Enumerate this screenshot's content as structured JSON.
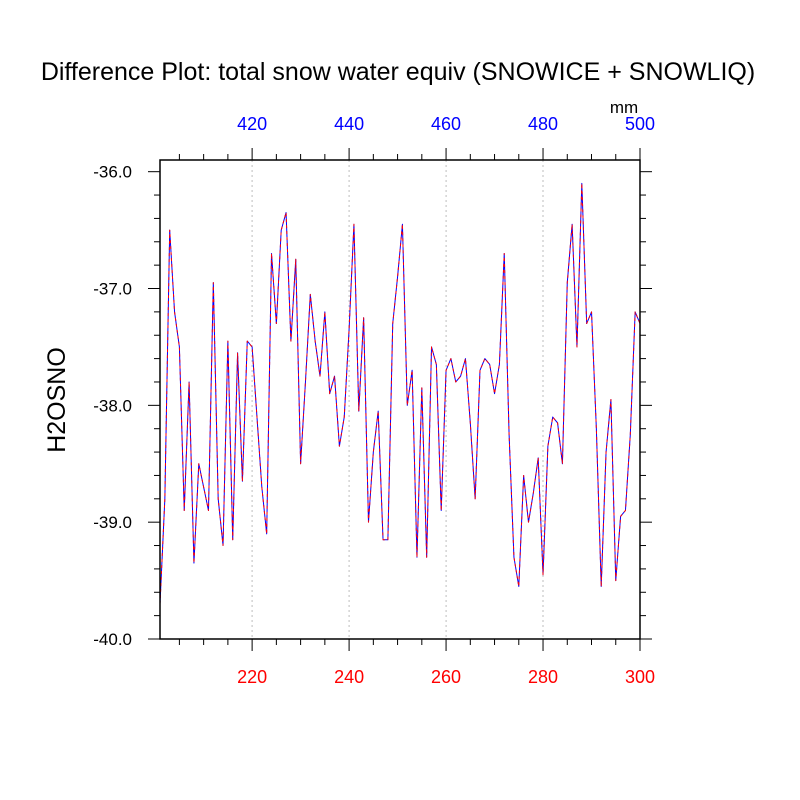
{
  "chart_data": {
    "type": "line",
    "title": "Difference Plot: total snow water equiv (SNOWICE + SNOWLIQ)",
    "ylabel": "H2OSNO",
    "top_axis_units": "mm",
    "ylim": [
      -40.0,
      -35.9
    ],
    "y_ticks": [
      "-36.0",
      "-37.0",
      "-38.0",
      "-39.0",
      "-40.0"
    ],
    "y_tick_values": [
      -36.0,
      -37.0,
      -38.0,
      -39.0,
      -40.0
    ],
    "x_bottom": {
      "min": 201,
      "max": 300,
      "ticks": [
        "220",
        "240",
        "260",
        "280",
        "300"
      ],
      "tick_values": [
        220,
        240,
        260,
        280,
        300
      ],
      "color": "#ff0000"
    },
    "x_top": {
      "min": 401,
      "max": 500,
      "ticks": [
        "420",
        "440",
        "460",
        "480",
        "500"
      ],
      "tick_values": [
        420,
        440,
        460,
        480,
        500
      ],
      "color": "#0000ff"
    },
    "grid": "vertical-dotted",
    "series": [
      {
        "color": "#0000ff",
        "style": "solid",
        "x": [
          201,
          202,
          203,
          204,
          205,
          206,
          207,
          208,
          209,
          210,
          211,
          212,
          213,
          214,
          215,
          216,
          217,
          218,
          219,
          220,
          221,
          222,
          223,
          224,
          225,
          226,
          227,
          228,
          229,
          230,
          231,
          232,
          233,
          234,
          235,
          236,
          237,
          238,
          239,
          240,
          241,
          242,
          243,
          244,
          245,
          246,
          247,
          248,
          249,
          250,
          251,
          252,
          253,
          254,
          255,
          256,
          257,
          258,
          259,
          260,
          261,
          262,
          263,
          264,
          265,
          266,
          267,
          268,
          269,
          270,
          271,
          272,
          273,
          274,
          275,
          276,
          277,
          278,
          279,
          280,
          281,
          282,
          283,
          284,
          285,
          286,
          287,
          288,
          289,
          290,
          291,
          292,
          293,
          294,
          295,
          296,
          297,
          298,
          299,
          300
        ],
        "y": [
          -39.7,
          -38.8,
          -36.5,
          -37.2,
          -37.5,
          -38.9,
          -37.8,
          -39.35,
          -38.5,
          -38.7,
          -38.9,
          -36.95,
          -38.8,
          -39.2,
          -37.45,
          -39.15,
          -37.55,
          -38.65,
          -37.45,
          -37.5,
          -38.1,
          -38.7,
          -39.1,
          -36.7,
          -37.3,
          -36.5,
          -36.35,
          -37.45,
          -36.75,
          -38.5,
          -37.8,
          -37.05,
          -37.45,
          -37.75,
          -37.2,
          -37.9,
          -37.75,
          -38.35,
          -38.1,
          -37.35,
          -36.45,
          -38.05,
          -37.25,
          -39.0,
          -38.4,
          -38.05,
          -39.15,
          -39.15,
          -37.3,
          -36.9,
          -36.45,
          -38.0,
          -37.7,
          -39.3,
          -37.85,
          -39.3,
          -37.5,
          -37.65,
          -38.9,
          -37.7,
          -37.6,
          -37.8,
          -37.75,
          -37.6,
          -38.15,
          -38.8,
          -37.7,
          -37.6,
          -37.65,
          -37.9,
          -37.65,
          -36.7,
          -38.25,
          -39.3,
          -39.55,
          -38.6,
          -39.0,
          -38.75,
          -38.45,
          -39.45,
          -38.35,
          -38.1,
          -38.15,
          -38.5,
          -36.95,
          -36.45,
          -37.5,
          -36.1,
          -37.3,
          -37.2,
          -38.2,
          -39.55,
          -38.4,
          -37.95,
          -39.5,
          -38.95,
          -38.9,
          -38.25,
          -37.2,
          -37.3
        ]
      },
      {
        "color": "#ff0000",
        "style": "dashed",
        "x": [
          201,
          202,
          203,
          204,
          205,
          206,
          207,
          208,
          209,
          210,
          211,
          212,
          213,
          214,
          215,
          216,
          217,
          218,
          219,
          220,
          221,
          222,
          223,
          224,
          225,
          226,
          227,
          228,
          229,
          230,
          231,
          232,
          233,
          234,
          235,
          236,
          237,
          238,
          239,
          240,
          241,
          242,
          243,
          244,
          245,
          246,
          247,
          248,
          249,
          250,
          251,
          252,
          253,
          254,
          255,
          256,
          257,
          258,
          259,
          260,
          261,
          262,
          263,
          264,
          265,
          266,
          267,
          268,
          269,
          270,
          271,
          272,
          273,
          274,
          275,
          276,
          277,
          278,
          279,
          280,
          281,
          282,
          283,
          284,
          285,
          286,
          287,
          288,
          289,
          290,
          291,
          292,
          293,
          294,
          295,
          296,
          297,
          298,
          299,
          300
        ],
        "y": [
          -39.7,
          -38.8,
          -36.5,
          -37.2,
          -37.5,
          -38.9,
          -37.8,
          -39.35,
          -38.5,
          -38.7,
          -38.9,
          -36.95,
          -38.8,
          -39.2,
          -37.45,
          -39.15,
          -37.55,
          -38.65,
          -37.45,
          -37.5,
          -38.1,
          -38.7,
          -39.1,
          -36.7,
          -37.3,
          -36.5,
          -36.35,
          -37.45,
          -36.75,
          -38.5,
          -37.8,
          -37.05,
          -37.45,
          -37.75,
          -37.2,
          -37.9,
          -37.75,
          -38.35,
          -38.1,
          -37.35,
          -36.45,
          -38.05,
          -37.25,
          -39.0,
          -38.4,
          -38.05,
          -39.15,
          -39.15,
          -37.3,
          -36.9,
          -36.45,
          -38.0,
          -37.7,
          -39.3,
          -37.85,
          -39.3,
          -37.5,
          -37.65,
          -38.9,
          -37.7,
          -37.6,
          -37.8,
          -37.75,
          -37.6,
          -38.15,
          -38.8,
          -37.7,
          -37.6,
          -37.65,
          -37.9,
          -37.65,
          -36.7,
          -38.25,
          -39.3,
          -39.55,
          -38.6,
          -39.0,
          -38.75,
          -38.45,
          -39.45,
          -38.35,
          -38.1,
          -38.15,
          -38.5,
          -36.95,
          -36.45,
          -37.5,
          -36.1,
          -37.3,
          -37.2,
          -38.2,
          -39.55,
          -38.4,
          -37.95,
          -39.5,
          -38.95,
          -38.9,
          -38.25,
          -37.2,
          -37.3
        ]
      }
    ]
  }
}
